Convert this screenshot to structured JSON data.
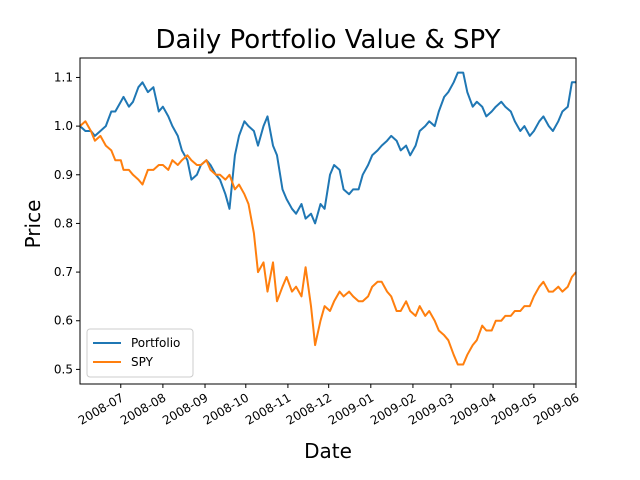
{
  "chart_data": {
    "type": "line",
    "title": "Daily Portfolio Value & SPY",
    "xlabel": "Date",
    "ylabel": "Price",
    "x_ticks": [
      "2008-07",
      "2008-08",
      "2008-09",
      "2008-10",
      "2008-11",
      "2008-12",
      "2009-01",
      "2009-02",
      "2009-03",
      "2009-04",
      "2009-05",
      "2009-06"
    ],
    "x_range": [
      "2008-06-01",
      "2009-06-01"
    ],
    "y_ticks": [
      0.5,
      0.6,
      0.7,
      0.8,
      0.9,
      1.0,
      1.1
    ],
    "ylim": [
      0.47,
      1.14
    ],
    "grid": false,
    "legend_position": "lower-left",
    "series": [
      {
        "name": "Portfolio",
        "color": "#1f77b4",
        "points": [
          [
            "2008-06-01",
            1.0
          ],
          [
            "2008-06-05",
            0.99
          ],
          [
            "2008-06-09",
            0.99
          ],
          [
            "2008-06-12",
            0.98
          ],
          [
            "2008-06-16",
            0.99
          ],
          [
            "2008-06-20",
            1.0
          ],
          [
            "2008-06-24",
            1.03
          ],
          [
            "2008-06-27",
            1.03
          ],
          [
            "2008-07-01",
            1.05
          ],
          [
            "2008-07-03",
            1.06
          ],
          [
            "2008-07-07",
            1.04
          ],
          [
            "2008-07-10",
            1.05
          ],
          [
            "2008-07-14",
            1.08
          ],
          [
            "2008-07-17",
            1.09
          ],
          [
            "2008-07-21",
            1.07
          ],
          [
            "2008-07-25",
            1.08
          ],
          [
            "2008-07-29",
            1.03
          ],
          [
            "2008-08-01",
            1.04
          ],
          [
            "2008-08-05",
            1.02
          ],
          [
            "2008-08-08",
            1.0
          ],
          [
            "2008-08-12",
            0.98
          ],
          [
            "2008-08-15",
            0.95
          ],
          [
            "2008-08-19",
            0.93
          ],
          [
            "2008-08-22",
            0.89
          ],
          [
            "2008-08-26",
            0.9
          ],
          [
            "2008-08-29",
            0.92
          ],
          [
            "2008-09-02",
            0.93
          ],
          [
            "2008-09-05",
            0.92
          ],
          [
            "2008-09-09",
            0.9
          ],
          [
            "2008-09-12",
            0.89
          ],
          [
            "2008-09-16",
            0.86
          ],
          [
            "2008-09-19",
            0.83
          ],
          [
            "2008-09-23",
            0.94
          ],
          [
            "2008-09-26",
            0.98
          ],
          [
            "2008-09-30",
            1.01
          ],
          [
            "2008-10-03",
            1.0
          ],
          [
            "2008-10-07",
            0.99
          ],
          [
            "2008-10-10",
            0.96
          ],
          [
            "2008-10-14",
            1.0
          ],
          [
            "2008-10-17",
            1.02
          ],
          [
            "2008-10-21",
            0.96
          ],
          [
            "2008-10-24",
            0.94
          ],
          [
            "2008-10-28",
            0.87
          ],
          [
            "2008-10-31",
            0.85
          ],
          [
            "2008-11-04",
            0.83
          ],
          [
            "2008-11-07",
            0.82
          ],
          [
            "2008-11-11",
            0.84
          ],
          [
            "2008-11-14",
            0.81
          ],
          [
            "2008-11-18",
            0.82
          ],
          [
            "2008-11-21",
            0.8
          ],
          [
            "2008-11-25",
            0.84
          ],
          [
            "2008-11-28",
            0.83
          ],
          [
            "2008-12-02",
            0.9
          ],
          [
            "2008-12-05",
            0.92
          ],
          [
            "2008-12-09",
            0.91
          ],
          [
            "2008-12-12",
            0.87
          ],
          [
            "2008-12-16",
            0.86
          ],
          [
            "2008-12-19",
            0.87
          ],
          [
            "2008-12-23",
            0.87
          ],
          [
            "2008-12-26",
            0.9
          ],
          [
            "2008-12-30",
            0.92
          ],
          [
            "2009-01-02",
            0.94
          ],
          [
            "2009-01-06",
            0.95
          ],
          [
            "2009-01-09",
            0.96
          ],
          [
            "2009-01-13",
            0.97
          ],
          [
            "2009-01-16",
            0.98
          ],
          [
            "2009-01-20",
            0.97
          ],
          [
            "2009-01-23",
            0.95
          ],
          [
            "2009-01-27",
            0.96
          ],
          [
            "2009-01-30",
            0.94
          ],
          [
            "2009-02-03",
            0.96
          ],
          [
            "2009-02-06",
            0.99
          ],
          [
            "2009-02-10",
            1.0
          ],
          [
            "2009-02-13",
            1.01
          ],
          [
            "2009-02-17",
            1.0
          ],
          [
            "2009-02-20",
            1.03
          ],
          [
            "2009-02-24",
            1.06
          ],
          [
            "2009-02-27",
            1.07
          ],
          [
            "2009-03-03",
            1.09
          ],
          [
            "2009-03-06",
            1.11
          ],
          [
            "2009-03-10",
            1.11
          ],
          [
            "2009-03-13",
            1.07
          ],
          [
            "2009-03-17",
            1.04
          ],
          [
            "2009-03-20",
            1.05
          ],
          [
            "2009-03-24",
            1.04
          ],
          [
            "2009-03-27",
            1.02
          ],
          [
            "2009-03-31",
            1.03
          ],
          [
            "2009-04-03",
            1.04
          ],
          [
            "2009-04-07",
            1.05
          ],
          [
            "2009-04-10",
            1.04
          ],
          [
            "2009-04-14",
            1.03
          ],
          [
            "2009-04-17",
            1.01
          ],
          [
            "2009-04-21",
            0.99
          ],
          [
            "2009-04-24",
            1.0
          ],
          [
            "2009-04-28",
            0.98
          ],
          [
            "2009-05-01",
            0.99
          ],
          [
            "2009-05-05",
            1.01
          ],
          [
            "2009-05-08",
            1.02
          ],
          [
            "2009-05-12",
            1.0
          ],
          [
            "2009-05-15",
            0.99
          ],
          [
            "2009-05-19",
            1.01
          ],
          [
            "2009-05-22",
            1.03
          ],
          [
            "2009-05-26",
            1.04
          ],
          [
            "2009-05-29",
            1.09
          ],
          [
            "2009-06-01",
            1.09
          ]
        ]
      },
      {
        "name": "SPY",
        "color": "#ff7f0e",
        "points": [
          [
            "2008-06-01",
            1.0
          ],
          [
            "2008-06-05",
            1.01
          ],
          [
            "2008-06-09",
            0.99
          ],
          [
            "2008-06-12",
            0.97
          ],
          [
            "2008-06-16",
            0.98
          ],
          [
            "2008-06-20",
            0.96
          ],
          [
            "2008-06-24",
            0.95
          ],
          [
            "2008-06-27",
            0.93
          ],
          [
            "2008-07-01",
            0.93
          ],
          [
            "2008-07-03",
            0.91
          ],
          [
            "2008-07-07",
            0.91
          ],
          [
            "2008-07-10",
            0.9
          ],
          [
            "2008-07-14",
            0.89
          ],
          [
            "2008-07-17",
            0.88
          ],
          [
            "2008-07-21",
            0.91
          ],
          [
            "2008-07-25",
            0.91
          ],
          [
            "2008-07-29",
            0.92
          ],
          [
            "2008-08-01",
            0.92
          ],
          [
            "2008-08-05",
            0.91
          ],
          [
            "2008-08-08",
            0.93
          ],
          [
            "2008-08-12",
            0.92
          ],
          [
            "2008-08-15",
            0.93
          ],
          [
            "2008-08-19",
            0.94
          ],
          [
            "2008-08-22",
            0.93
          ],
          [
            "2008-08-26",
            0.92
          ],
          [
            "2008-08-29",
            0.92
          ],
          [
            "2008-09-02",
            0.93
          ],
          [
            "2008-09-05",
            0.91
          ],
          [
            "2008-09-09",
            0.9
          ],
          [
            "2008-09-12",
            0.9
          ],
          [
            "2008-09-16",
            0.89
          ],
          [
            "2008-09-19",
            0.9
          ],
          [
            "2008-09-23",
            0.87
          ],
          [
            "2008-09-26",
            0.88
          ],
          [
            "2008-09-30",
            0.86
          ],
          [
            "2008-10-03",
            0.84
          ],
          [
            "2008-10-07",
            0.78
          ],
          [
            "2008-10-10",
            0.7
          ],
          [
            "2008-10-14",
            0.72
          ],
          [
            "2008-10-17",
            0.66
          ],
          [
            "2008-10-21",
            0.72
          ],
          [
            "2008-10-24",
            0.64
          ],
          [
            "2008-10-28",
            0.67
          ],
          [
            "2008-10-31",
            0.69
          ],
          [
            "2008-11-04",
            0.66
          ],
          [
            "2008-11-07",
            0.67
          ],
          [
            "2008-11-11",
            0.65
          ],
          [
            "2008-11-14",
            0.71
          ],
          [
            "2008-11-18",
            0.63
          ],
          [
            "2008-11-21",
            0.55
          ],
          [
            "2008-11-25",
            0.6
          ],
          [
            "2008-11-28",
            0.63
          ],
          [
            "2008-12-02",
            0.62
          ],
          [
            "2008-12-05",
            0.64
          ],
          [
            "2008-12-09",
            0.66
          ],
          [
            "2008-12-12",
            0.65
          ],
          [
            "2008-12-16",
            0.66
          ],
          [
            "2008-12-19",
            0.65
          ],
          [
            "2008-12-23",
            0.64
          ],
          [
            "2008-12-26",
            0.64
          ],
          [
            "2008-12-30",
            0.65
          ],
          [
            "2009-01-02",
            0.67
          ],
          [
            "2009-01-06",
            0.68
          ],
          [
            "2009-01-09",
            0.68
          ],
          [
            "2009-01-13",
            0.66
          ],
          [
            "2009-01-16",
            0.65
          ],
          [
            "2009-01-20",
            0.62
          ],
          [
            "2009-01-23",
            0.62
          ],
          [
            "2009-01-27",
            0.64
          ],
          [
            "2009-01-30",
            0.62
          ],
          [
            "2009-02-03",
            0.61
          ],
          [
            "2009-02-06",
            0.63
          ],
          [
            "2009-02-10",
            0.61
          ],
          [
            "2009-02-13",
            0.62
          ],
          [
            "2009-02-17",
            0.6
          ],
          [
            "2009-02-20",
            0.58
          ],
          [
            "2009-02-24",
            0.57
          ],
          [
            "2009-02-27",
            0.56
          ],
          [
            "2009-03-03",
            0.53
          ],
          [
            "2009-03-06",
            0.51
          ],
          [
            "2009-03-10",
            0.51
          ],
          [
            "2009-03-13",
            0.53
          ],
          [
            "2009-03-17",
            0.55
          ],
          [
            "2009-03-20",
            0.56
          ],
          [
            "2009-03-24",
            0.59
          ],
          [
            "2009-03-27",
            0.58
          ],
          [
            "2009-03-31",
            0.58
          ],
          [
            "2009-04-03",
            0.6
          ],
          [
            "2009-04-07",
            0.6
          ],
          [
            "2009-04-10",
            0.61
          ],
          [
            "2009-04-14",
            0.61
          ],
          [
            "2009-04-17",
            0.62
          ],
          [
            "2009-04-21",
            0.62
          ],
          [
            "2009-04-24",
            0.63
          ],
          [
            "2009-04-28",
            0.63
          ],
          [
            "2009-05-01",
            0.65
          ],
          [
            "2009-05-05",
            0.67
          ],
          [
            "2009-05-08",
            0.68
          ],
          [
            "2009-05-12",
            0.66
          ],
          [
            "2009-05-15",
            0.66
          ],
          [
            "2009-05-19",
            0.67
          ],
          [
            "2009-05-22",
            0.66
          ],
          [
            "2009-05-26",
            0.67
          ],
          [
            "2009-05-29",
            0.69
          ],
          [
            "2009-06-01",
            0.7
          ]
        ]
      }
    ]
  }
}
